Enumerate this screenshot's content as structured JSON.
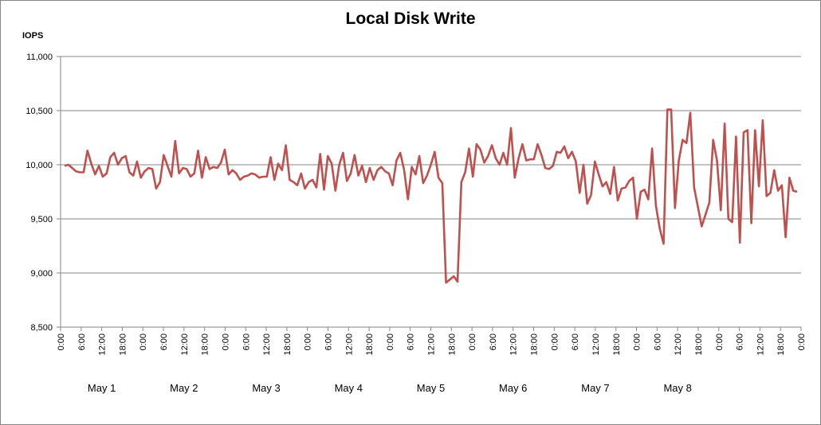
{
  "chart_data": {
    "type": "line",
    "title": "Local Disk Write",
    "ylabel": "IOPS",
    "ylim": [
      8500,
      11000
    ],
    "yticks": [
      "8,500",
      "9,000",
      "9,500",
      "10,000",
      "10,500",
      "11,000"
    ],
    "ytick_values": [
      8500,
      9000,
      9500,
      10000,
      10500,
      11000
    ],
    "xtick_labels": [
      "0:00",
      "6:00",
      "12:00",
      "18:00",
      "0:00",
      "6:00",
      "12:00",
      "18:00",
      "0:00",
      "6:00",
      "12:00",
      "18:00",
      "0:00",
      "6:00",
      "12:00",
      "18:00",
      "0:00",
      "6:00",
      "12:00",
      "18:00",
      "0:00",
      "6:00",
      "12:00",
      "18:00",
      "0:00",
      "6:00",
      "12:00",
      "18:00",
      "0:00",
      "6:00",
      "12:00",
      "18:00",
      "0:00",
      "6:00",
      "12:00",
      "18:00",
      "0:00"
    ],
    "day_labels": [
      "May 1",
      "May 2",
      "May 3",
      "May 4",
      "May 5",
      "May 6",
      "May 7",
      "May 8"
    ],
    "grid": true,
    "line_color": "#C0504D",
    "series": [
      {
        "values": [
          9990,
          10000,
          9970,
          9940,
          9930,
          9930,
          10130,
          10010,
          9910,
          9990,
          9890,
          9920,
          10070,
          10110,
          10000,
          10060,
          10080,
          9930,
          9900,
          10030,
          9880,
          9940,
          9970,
          9960,
          9780,
          9840,
          10090,
          9990,
          9890,
          10220,
          9920,
          9970,
          9960,
          9890,
          9920,
          10130,
          9880,
          10070,
          9960,
          9980,
          9970,
          10020,
          10140,
          9910,
          9950,
          9920,
          9860,
          9890,
          9900,
          9920,
          9910,
          9880,
          9890,
          9890,
          10070,
          9860,
          10010,
          9950,
          10180,
          9860,
          9840,
          9810,
          9920,
          9780,
          9840,
          9860,
          9790,
          10100,
          9770,
          10080,
          10010,
          9760,
          10000,
          10110,
          9850,
          9920,
          10090,
          9900,
          9990,
          9840,
          9970,
          9860,
          9950,
          9980,
          9940,
          9920,
          9810,
          10040,
          10110,
          9950,
          9680,
          9980,
          9910,
          10080,
          9830,
          9900,
          10000,
          10120,
          9880,
          9830,
          8910,
          8940,
          8970,
          8920,
          9840,
          9930,
          10150,
          9890,
          10190,
          10140,
          10020,
          10080,
          10180,
          10060,
          10000,
          10110,
          10000,
          10340,
          9880,
          10060,
          10190,
          10040,
          10050,
          10050,
          10190,
          10090,
          9970,
          9960,
          9990,
          10120,
          10110,
          10170,
          10060,
          10120,
          10030,
          9740,
          10000,
          9640,
          9720,
          10030,
          9910,
          9800,
          9840,
          9730,
          9980,
          9670,
          9780,
          9790,
          9850,
          9880,
          9500,
          9750,
          9770,
          9680,
          10150,
          9620,
          9410,
          9270,
          10510,
          10510,
          9600,
          10040,
          10230,
          10200,
          10480,
          9790,
          9610,
          9430,
          9540,
          9650,
          10230,
          10040,
          9580,
          10380,
          9500,
          9470,
          10260,
          9280,
          10300,
          10320,
          9460,
          10320,
          9800,
          10410,
          9710,
          9740,
          9950,
          9760,
          9810,
          9330,
          9880,
          9760,
          9750
        ]
      }
    ]
  }
}
